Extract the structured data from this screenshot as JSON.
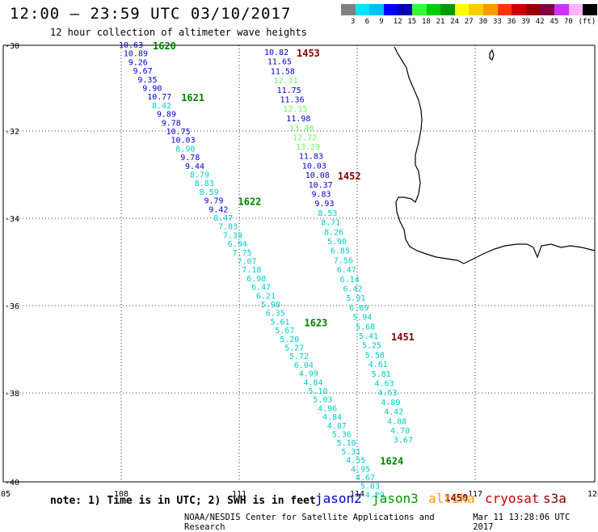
{
  "title": "12:00 – 23:59 UTC 03/10/2017",
  "subtitle": "12 hour collection of altimeter wave heights",
  "legend": {
    "colors": [
      "#808080",
      "#00e5ff",
      "#00bfff",
      "#0000ff",
      "#0000b3",
      "#33ff33",
      "#00cc00",
      "#009900",
      "#ffff00",
      "#ffcc00",
      "#ff9900",
      "#ff3300",
      "#cc0000",
      "#990000",
      "#800040",
      "#cc33ff",
      "#ffb3ff",
      "#000000"
    ],
    "labels": [
      "3",
      "6",
      "9",
      "12",
      "15",
      "18",
      "21",
      "24",
      "27",
      "30",
      "33",
      "36",
      "39",
      "42",
      "45",
      "70",
      "(ft)"
    ]
  },
  "axes": {
    "lon_ticks": [
      "105",
      "108",
      "111",
      "114",
      "117",
      "120"
    ],
    "lat_ticks": [
      "-30",
      "-32",
      "-34",
      "-36",
      "-38",
      "-40"
    ]
  },
  "colors": {
    "blue": "#0000cc",
    "cyan": "#00cccc",
    "lightgreen": "#66ff66",
    "darkgreen": "#008000",
    "darkred": "#800000",
    "grid": "#000000"
  },
  "track_a": {
    "times": [
      {
        "label": "1620",
        "row": 0
      },
      {
        "label": "1621",
        "row": 6
      },
      {
        "label": "1622",
        "row": 18
      },
      {
        "label": "1623",
        "row": 32
      },
      {
        "label": "1624",
        "row": 48
      }
    ],
    "values": [
      {
        "v": "10.63",
        "c": "blue"
      },
      {
        "v": "10.89",
        "c": "blue"
      },
      {
        "v": "9.26",
        "c": "blue"
      },
      {
        "v": "9.67",
        "c": "blue"
      },
      {
        "v": "9.35",
        "c": "blue"
      },
      {
        "v": "9.90",
        "c": "blue"
      },
      {
        "v": "10.77",
        "c": "blue"
      },
      {
        "v": "8.42",
        "c": "cyan"
      },
      {
        "v": "9.89",
        "c": "blue"
      },
      {
        "v": "9.78",
        "c": "blue"
      },
      {
        "v": "10.75",
        "c": "blue"
      },
      {
        "v": "10.03",
        "c": "blue"
      },
      {
        "v": "8.90",
        "c": "cyan"
      },
      {
        "v": "9.78",
        "c": "blue"
      },
      {
        "v": "9.44",
        "c": "blue"
      },
      {
        "v": "8.79",
        "c": "cyan"
      },
      {
        "v": "8.83",
        "c": "cyan"
      },
      {
        "v": "8.59",
        "c": "cyan"
      },
      {
        "v": "9.79",
        "c": "blue"
      },
      {
        "v": "9.42",
        "c": "blue"
      },
      {
        "v": "8.47",
        "c": "cyan"
      },
      {
        "v": "7.83",
        "c": "cyan"
      },
      {
        "v": "7.39",
        "c": "cyan"
      },
      {
        "v": "6.94",
        "c": "cyan"
      },
      {
        "v": "7.75",
        "c": "cyan"
      },
      {
        "v": "7.07",
        "c": "cyan"
      },
      {
        "v": "7.18",
        "c": "cyan"
      },
      {
        "v": "6.98",
        "c": "cyan"
      },
      {
        "v": "6.47",
        "c": "cyan"
      },
      {
        "v": "6.21",
        "c": "cyan"
      },
      {
        "v": "5.98",
        "c": "cyan"
      },
      {
        "v": "6.35",
        "c": "cyan"
      },
      {
        "v": "5.61",
        "c": "cyan"
      },
      {
        "v": "5.67",
        "c": "cyan"
      },
      {
        "v": "5.20",
        "c": "cyan"
      },
      {
        "v": "5.27",
        "c": "cyan"
      },
      {
        "v": "5.72",
        "c": "cyan"
      },
      {
        "v": "6.04",
        "c": "cyan"
      },
      {
        "v": "4.99",
        "c": "cyan"
      },
      {
        "v": "4.84",
        "c": "cyan"
      },
      {
        "v": "5.10",
        "c": "cyan"
      },
      {
        "v": "5.03",
        "c": "cyan"
      },
      {
        "v": "4.96",
        "c": "cyan"
      },
      {
        "v": "4.84",
        "c": "cyan"
      },
      {
        "v": "4.87",
        "c": "cyan"
      },
      {
        "v": "5.36",
        "c": "cyan"
      },
      {
        "v": "5.10",
        "c": "cyan"
      },
      {
        "v": "5.31",
        "c": "cyan"
      },
      {
        "v": "4.55",
        "c": "cyan"
      },
      {
        "v": "4.95",
        "c": "cyan"
      },
      {
        "v": "4.67",
        "c": "cyan"
      },
      {
        "v": "5.03",
        "c": "cyan"
      },
      {
        "v": "4.29",
        "c": "cyan"
      }
    ]
  },
  "track_b": {
    "times": [
      {
        "label": "1453",
        "row": 0
      },
      {
        "label": "1452",
        "row": 13
      },
      {
        "label": "1451",
        "row": 30
      },
      {
        "label": "1450",
        "row": 47
      }
    ],
    "values": [
      {
        "v": "10.82",
        "c": "blue"
      },
      {
        "v": "11.65",
        "c": "blue"
      },
      {
        "v": "11.58",
        "c": "blue"
      },
      {
        "v": "12.11",
        "c": "lightgreen"
      },
      {
        "v": "11.75",
        "c": "blue"
      },
      {
        "v": "11.36",
        "c": "blue"
      },
      {
        "v": "12.15",
        "c": "lightgreen"
      },
      {
        "v": "11.98",
        "c": "blue"
      },
      {
        "v": "13.46",
        "c": "lightgreen"
      },
      {
        "v": "12.72",
        "c": "lightgreen"
      },
      {
        "v": "13.29",
        "c": "lightgreen"
      },
      {
        "v": "11.83",
        "c": "blue"
      },
      {
        "v": "10.03",
        "c": "blue"
      },
      {
        "v": "10.08",
        "c": "blue"
      },
      {
        "v": "10.37",
        "c": "blue"
      },
      {
        "v": "9.83",
        "c": "blue"
      },
      {
        "v": "9.93",
        "c": "blue"
      },
      {
        "v": "8.53",
        "c": "cyan"
      },
      {
        "v": "8.71",
        "c": "cyan"
      },
      {
        "v": "8.26",
        "c": "cyan"
      },
      {
        "v": "5.90",
        "c": "cyan"
      },
      {
        "v": "6.85",
        "c": "cyan"
      },
      {
        "v": "7.56",
        "c": "cyan"
      },
      {
        "v": "6.47",
        "c": "cyan"
      },
      {
        "v": "6.14",
        "c": "cyan"
      },
      {
        "v": "6.42",
        "c": "cyan"
      },
      {
        "v": "5.91",
        "c": "cyan"
      },
      {
        "v": "6.69",
        "c": "cyan"
      },
      {
        "v": "5.94",
        "c": "cyan"
      },
      {
        "v": "5.68",
        "c": "cyan"
      },
      {
        "v": "5.41",
        "c": "cyan"
      },
      {
        "v": "5.25",
        "c": "cyan"
      },
      {
        "v": "5.58",
        "c": "cyan"
      },
      {
        "v": "4.61",
        "c": "cyan"
      },
      {
        "v": "5.81",
        "c": "cyan"
      },
      {
        "v": "4.63",
        "c": "cyan"
      },
      {
        "v": "4.63",
        "c": "cyan"
      },
      {
        "v": "4.89",
        "c": "cyan"
      },
      {
        "v": "4.42",
        "c": "cyan"
      },
      {
        "v": "4.88",
        "c": "cyan"
      },
      {
        "v": "4.70",
        "c": "cyan"
      },
      {
        "v": "3.67",
        "c": "cyan"
      }
    ]
  },
  "note": "note: 1) Time is in UTC; 2) SWH is in feet",
  "satellites": [
    {
      "name": "jason2",
      "color": "#0000cc"
    },
    {
      "name": "jason3",
      "color": "#009900"
    },
    {
      "name": "altika",
      "color": "#ff9900"
    },
    {
      "name": "cryosat",
      "color": "#cc0000"
    },
    {
      "name": "s3a",
      "color": "#800000"
    }
  ],
  "footer": {
    "credit": "NOAA/NESDIS Center for Satellite Applications and Research",
    "timestamp": "Mar 11 13:28:06 UTC 2017"
  }
}
